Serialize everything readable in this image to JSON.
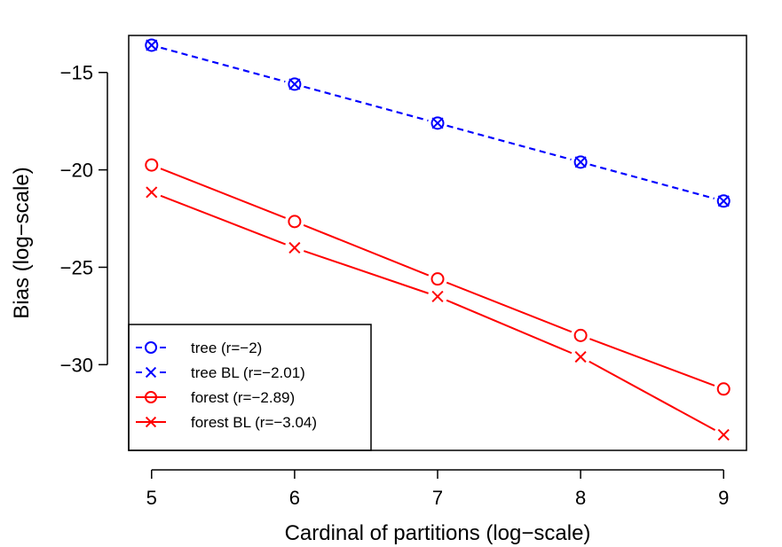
{
  "chart_data": {
    "type": "line",
    "title": "",
    "xlabel": "Cardinal of partitions (log−scale)",
    "ylabel": "Bias (log−scale)",
    "x": [
      5,
      6,
      7,
      8,
      9
    ],
    "xlim": [
      4.84,
      9.16
    ],
    "ylim": [
      -34.4,
      -13.1
    ],
    "xticks": [
      5,
      6,
      7,
      8,
      9
    ],
    "xtick_labels": [
      "5",
      "6",
      "7",
      "8",
      "9"
    ],
    "yticks": [
      -15,
      -20,
      -25,
      -30
    ],
    "ytick_labels": [
      "−15",
      "−20",
      "−25",
      "−30"
    ],
    "grid": false,
    "legend_position": "bottom-left",
    "series": [
      {
        "name": "tree (r=−2)",
        "values": [
          -13.6,
          -15.6,
          -17.6,
          -19.6,
          -21.6
        ],
        "color": "#0000ff",
        "marker": "circle",
        "linestyle": "dashed"
      },
      {
        "name": "tree BL (r=−2.01)",
        "values": [
          -13.6,
          -15.6,
          -17.6,
          -19.6,
          -21.6
        ],
        "color": "#0000ff",
        "marker": "x",
        "linestyle": "dashed"
      },
      {
        "name": "forest (r=−2.89)",
        "values": [
          -19.75,
          -22.65,
          -25.6,
          -28.5,
          -31.25
        ],
        "color": "#ff0000",
        "marker": "circle",
        "linestyle": "solid"
      },
      {
        "name": "forest BL (r=−3.04)",
        "values": [
          -21.15,
          -24.0,
          -26.5,
          -29.6,
          -33.6
        ],
        "color": "#ff0000",
        "marker": "x",
        "linestyle": "solid"
      }
    ]
  }
}
